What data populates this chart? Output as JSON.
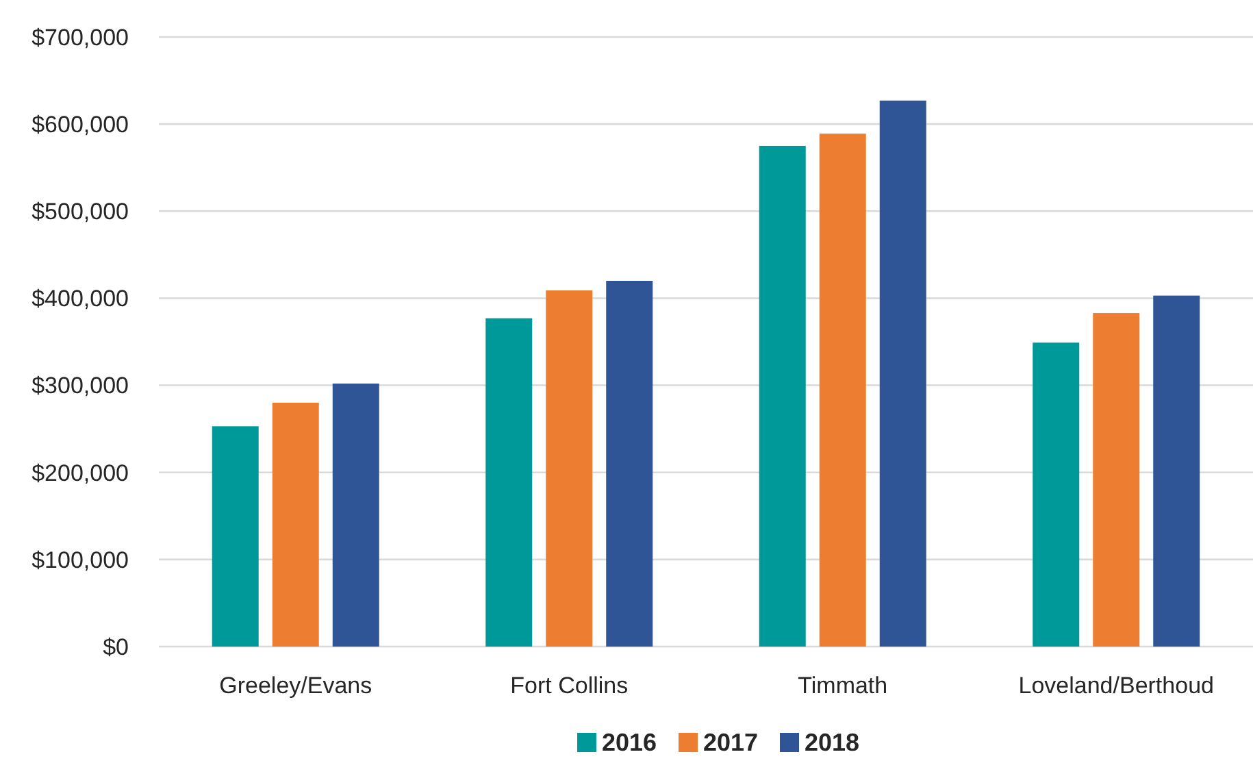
{
  "chart_data": {
    "type": "bar",
    "categories": [
      "Greeley/Evans",
      "Fort Collins",
      "Timmath",
      "Loveland/Berthoud"
    ],
    "series": [
      {
        "name": "2016",
        "color": "#009999",
        "values": [
          253000,
          377000,
          575000,
          349000
        ]
      },
      {
        "name": "2017",
        "color": "#ed7d31",
        "values": [
          280000,
          409000,
          589000,
          383000
        ]
      },
      {
        "name": "2018",
        "color": "#2f5597",
        "values": [
          302000,
          420000,
          627000,
          403000
        ]
      }
    ],
    "ylim": [
      0,
      700000
    ],
    "yticks": [
      {
        "value": 0,
        "label": "$0"
      },
      {
        "value": 100000,
        "label": "$100,000"
      },
      {
        "value": 200000,
        "label": "$200,000"
      },
      {
        "value": 300000,
        "label": "$300,000"
      },
      {
        "value": 400000,
        "label": "$400,000"
      },
      {
        "value": 500000,
        "label": "$500,000"
      },
      {
        "value": 600000,
        "label": "$600,000"
      },
      {
        "value": 700000,
        "label": "$700,000"
      }
    ],
    "grid": "y",
    "legend": "bottom"
  }
}
